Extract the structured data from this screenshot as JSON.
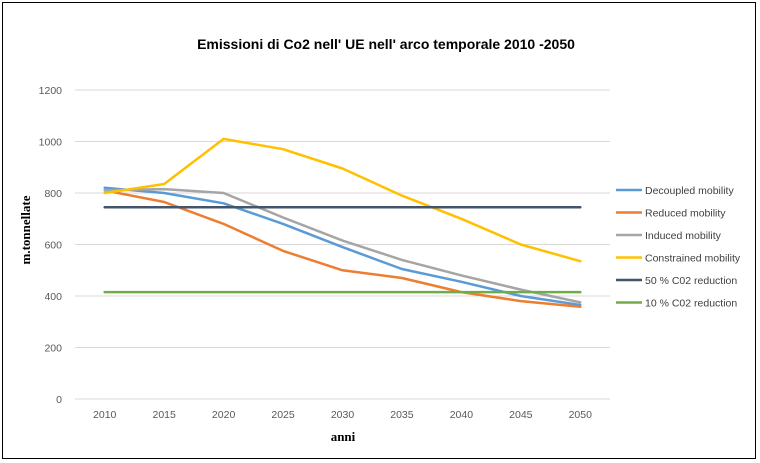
{
  "chart_data": {
    "type": "line",
    "title": "Emissioni di Co2 nell' UE  nell' arco temporale 2010 -2050",
    "xlabel": "anni",
    "ylabel": "m.tonnellate",
    "categories": [
      "2010",
      "2015",
      "2020",
      "2025",
      "2030",
      "2035",
      "2040",
      "2045",
      "2050"
    ],
    "ylim": [
      0,
      1200
    ],
    "yticks": [
      0,
      200,
      400,
      600,
      800,
      1000,
      1200
    ],
    "grid": true,
    "legend_position": "right",
    "series": [
      {
        "name": "Decoupled mobility",
        "color": "#5b9bd5",
        "values": [
          820,
          800,
          760,
          680,
          590,
          505,
          455,
          400,
          365
        ]
      },
      {
        "name": "Reduced mobility",
        "color": "#ed7d31",
        "values": [
          810,
          765,
          680,
          575,
          500,
          470,
          415,
          380,
          358
        ]
      },
      {
        "name": "Induced mobility",
        "color": "#a5a5a5",
        "values": [
          810,
          815,
          800,
          705,
          615,
          540,
          480,
          425,
          375
        ]
      },
      {
        "name": "Constrained mobility",
        "color": "#ffc000",
        "values": [
          800,
          835,
          1010,
          970,
          895,
          790,
          700,
          600,
          535
        ]
      },
      {
        "name": "50 % C02 reduction",
        "color": "#44546a",
        "values": [
          745,
          745,
          745,
          745,
          745,
          745,
          745,
          745,
          745
        ]
      },
      {
        "name": "10 % C02 reduction",
        "color": "#70ad47",
        "values": [
          415,
          415,
          415,
          415,
          415,
          415,
          415,
          415,
          415
        ]
      }
    ]
  }
}
